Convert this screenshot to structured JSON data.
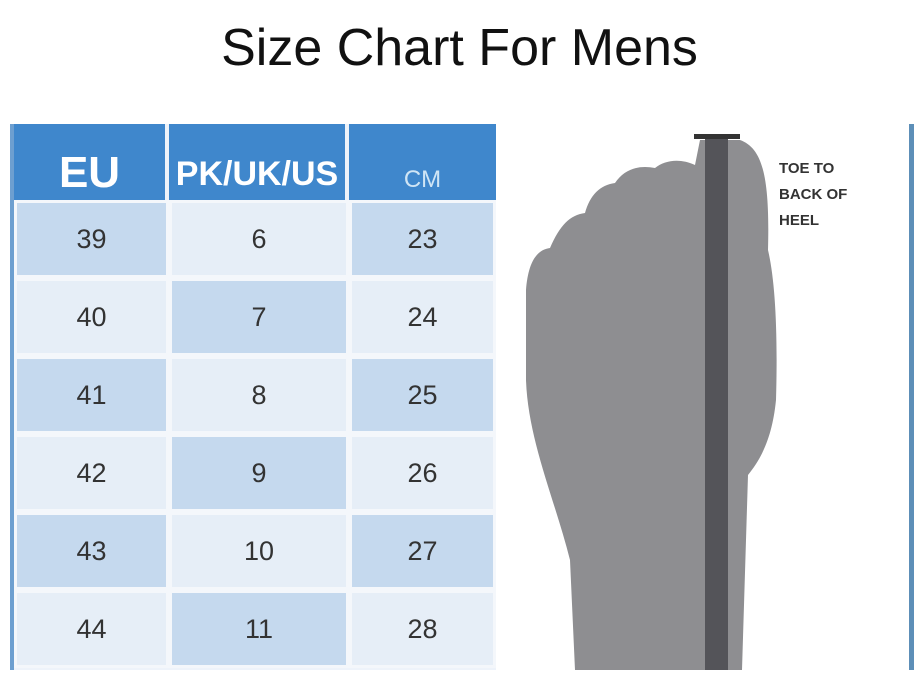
{
  "title": "Size Chart For Mens",
  "table": {
    "headers": [
      "EU",
      "PK/UK/US",
      "CM"
    ],
    "rows": [
      [
        "39",
        "6",
        "23"
      ],
      [
        "40",
        "7",
        "24"
      ],
      [
        "41",
        "8",
        "25"
      ],
      [
        "42",
        "9",
        "26"
      ],
      [
        "43",
        "10",
        "27"
      ],
      [
        "44",
        "11",
        "28"
      ]
    ]
  },
  "diagram": {
    "label_lines": [
      "TOE TO",
      "BACK OF",
      "HEEL"
    ]
  },
  "colors": {
    "header": "#3f87cc",
    "cell_dark": "#c5d9ee",
    "cell_light": "#e6eef7",
    "foot": "#8e8e91",
    "ruler": "#545459"
  }
}
